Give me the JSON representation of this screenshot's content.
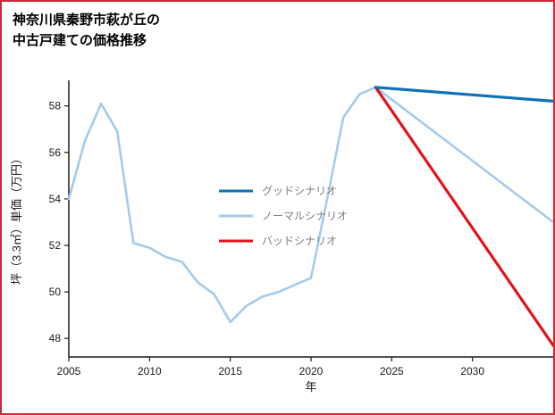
{
  "frame": {
    "border_color": "#cc2936",
    "background_color": "#ffffff"
  },
  "title": {
    "line1": "神奈川県秦野市萩が丘の",
    "line2": "中古戸建ての価格推移"
  },
  "chart_data": {
    "type": "line",
    "title": "神奈川県秦野市萩が丘の中古戸建ての価格推移",
    "xlabel": "年",
    "ylabel": "坪（3.3㎡）単価（万円）",
    "xlim": [
      2005,
      2035
    ],
    "ylim": [
      47.2,
      59.1
    ],
    "xticks": [
      2005,
      2010,
      2015,
      2020,
      2025,
      2030
    ],
    "yticks": [
      48,
      50,
      52,
      54,
      56,
      58
    ],
    "grid": false,
    "legend_position": "center",
    "axis_color": "#1a1a1a",
    "legend_text_color": "#808080",
    "series": [
      {
        "name": "グッドシナリオ",
        "key": "good",
        "color": "#0e72b8",
        "line_width": 3.2,
        "x": [
          2024,
          2035
        ],
        "y": [
          58.8,
          58.2
        ]
      },
      {
        "name": "ノーマルシナリオ",
        "key": "normal",
        "color": "#a4cbed",
        "line_width": 2.6,
        "x": [
          2005,
          2006,
          2007,
          2008,
          2009,
          2010,
          2011,
          2012,
          2013,
          2014,
          2015,
          2016,
          2017,
          2018,
          2019,
          2020,
          2021,
          2022,
          2023,
          2024,
          2035
        ],
        "y": [
          54.0,
          56.5,
          58.1,
          56.9,
          52.1,
          51.9,
          51.5,
          51.3,
          50.4,
          49.9,
          48.7,
          49.4,
          49.8,
          50.0,
          50.3,
          50.6,
          54.0,
          57.5,
          58.5,
          58.8,
          53.0
        ]
      },
      {
        "name": "バッドシナリオ",
        "key": "bad",
        "color": "#e3131b",
        "line_width": 3.2,
        "x": [
          2024,
          2035
        ],
        "y": [
          58.8,
          47.7
        ]
      }
    ]
  }
}
